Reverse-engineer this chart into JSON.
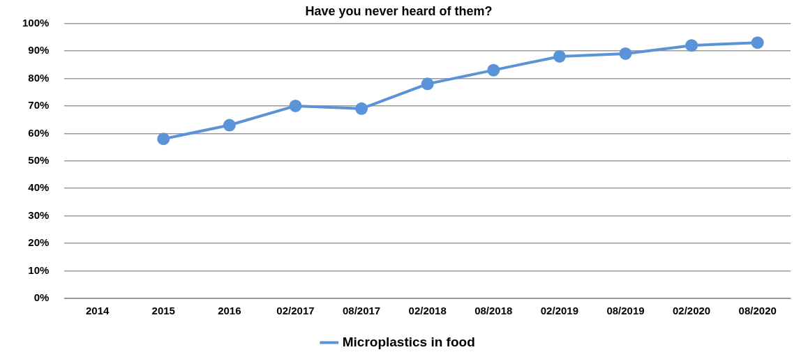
{
  "chart_data": {
    "type": "line",
    "title": "Have you never heard of them?",
    "categories": [
      "2014",
      "2015",
      "2016",
      "02/2017",
      "08/2017",
      "02/2018",
      "08/2018",
      "02/2019",
      "08/2019",
      "02/2020",
      "08/2020"
    ],
    "series": [
      {
        "name": "Microplastics in food",
        "color": "#5b93d8",
        "values": [
          null,
          58,
          63,
          70,
          69,
          78,
          83,
          88,
          89,
          92,
          93
        ]
      }
    ],
    "ylim": [
      0,
      100
    ],
    "yticks": [
      {
        "value": 0,
        "label": "0%"
      },
      {
        "value": 10,
        "label": "10%"
      },
      {
        "value": 20,
        "label": "20%"
      },
      {
        "value": 30,
        "label": "30%"
      },
      {
        "value": 40,
        "label": "40%"
      },
      {
        "value": 50,
        "label": "50%"
      },
      {
        "value": 60,
        "label": "60%"
      },
      {
        "value": 70,
        "label": "70%"
      },
      {
        "value": 80,
        "label": "80%"
      },
      {
        "value": 90,
        "label": "90%"
      },
      {
        "value": 100,
        "label": "100%"
      }
    ],
    "grid": "y",
    "legend": "bottom",
    "marker": "circle",
    "line_style": "solid"
  }
}
